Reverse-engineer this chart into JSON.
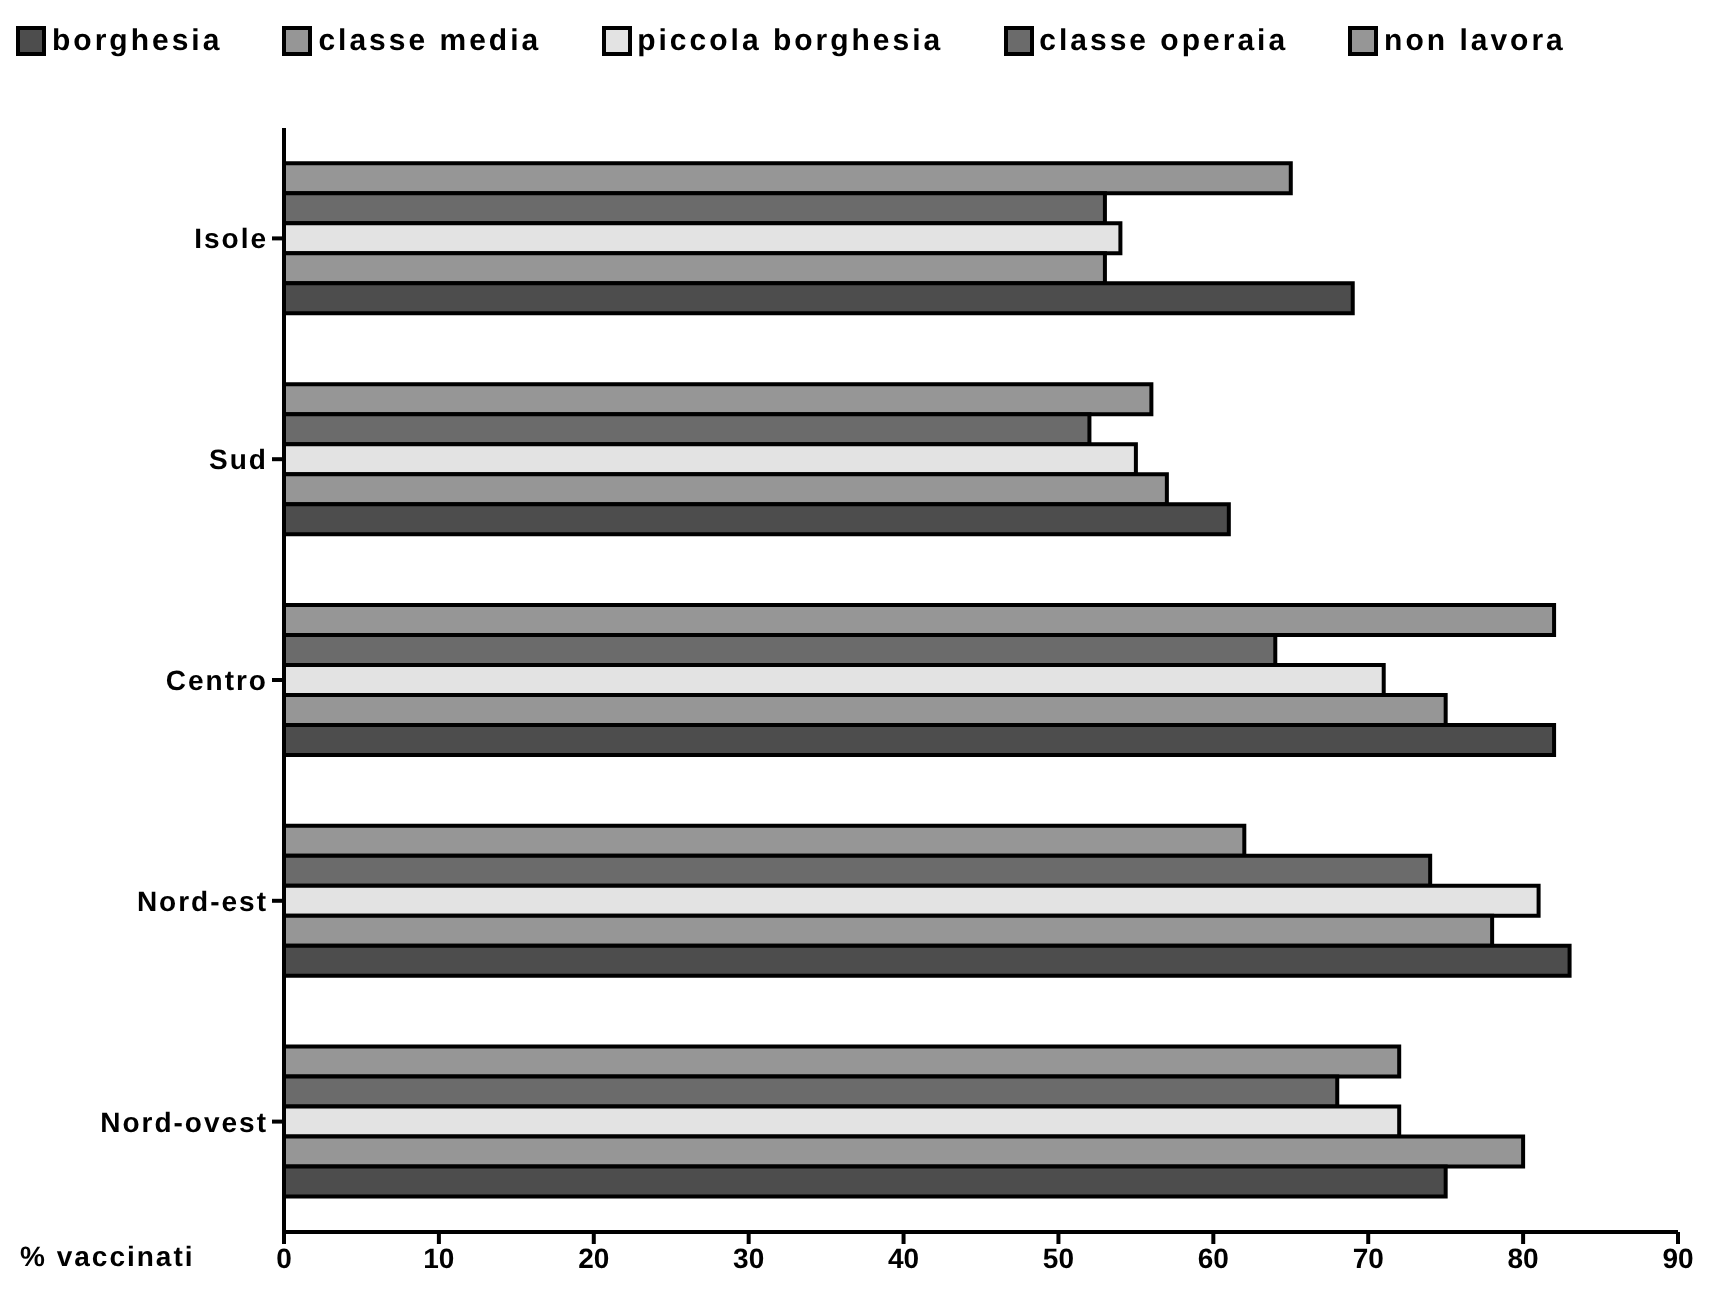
{
  "chart_data": {
    "type": "bar",
    "orientation": "horizontal",
    "xlabel": "% vaccinati",
    "categories": [
      "Isole",
      "Sud",
      "Centro",
      "Nord-est",
      "Nord-ovest"
    ],
    "series": [
      {
        "name": "borghesia",
        "color": "#4d4d4d",
        "values": [
          69,
          61,
          82,
          83,
          75
        ]
      },
      {
        "name": "classe media",
        "color": "#969696",
        "values": [
          53,
          57,
          75,
          78,
          80
        ]
      },
      {
        "name": "piccola borghesia",
        "color": "#e3e3e3",
        "values": [
          54,
          55,
          71,
          81,
          72
        ]
      },
      {
        "name": "classe operaia",
        "color": "#6b6b6b",
        "values": [
          53,
          52,
          64,
          74,
          68
        ]
      },
      {
        "name": "non lavora",
        "color": "#969696",
        "values": [
          65,
          56,
          82,
          62,
          72
        ]
      }
    ],
    "xlim": [
      0,
      90
    ],
    "xticks": [
      0,
      10,
      20,
      30,
      40,
      50,
      60,
      70,
      80,
      90
    ],
    "legend": "top"
  }
}
